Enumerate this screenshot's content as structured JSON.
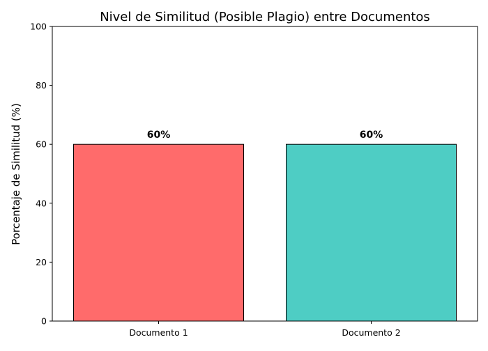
{
  "chart_data": {
    "type": "bar",
    "title": "Nivel de Similitud (Posible Plagio) entre Documentos",
    "xlabel": "",
    "ylabel": "Porcentaje de Similitud (%)",
    "categories": [
      "Documento 1",
      "Documento 2"
    ],
    "values": [
      60,
      60
    ],
    "value_labels": [
      "60%",
      "60%"
    ],
    "colors": [
      "#ff6b6b",
      "#4ecdc4"
    ],
    "edge_color": "#000000",
    "ylim": [
      0,
      100
    ],
    "yticks": [
      0,
      20,
      40,
      60,
      80,
      100
    ],
    "ytick_labels": [
      "0",
      "20",
      "40",
      "60",
      "80",
      "100"
    ],
    "grid": false,
    "legend": "none"
  }
}
